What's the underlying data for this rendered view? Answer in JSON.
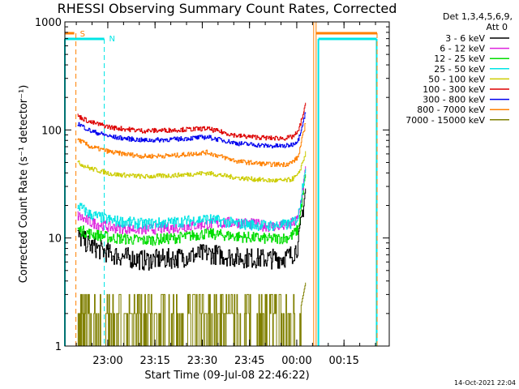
{
  "chart_data": {
    "type": "line",
    "title": "RHESSI Observing Summary Count Rates, Corrected",
    "xlabel": "Start Time (09-Jul-08 22:46:22)",
    "ylabel": "Corrected Count Rate (s⁻¹ detector⁻¹)",
    "y_scale": "log",
    "ylim": [
      1,
      1000
    ],
    "xlim_minutes": [
      0,
      103
    ],
    "y_ticks": [
      "1",
      "10",
      "100",
      "1000"
    ],
    "x_ticks": [
      {
        "label": "23:00",
        "t": 13.63
      },
      {
        "label": "23:15",
        "t": 28.63
      },
      {
        "label": "23:30",
        "t": 43.63
      },
      {
        "label": "23:45",
        "t": 58.63
      },
      {
        "label": "00:00",
        "t": 73.63
      },
      {
        "label": "00:15",
        "t": 88.63
      }
    ],
    "legend_header": [
      "Det 1,3,4,5,6,9,",
      "Att 0"
    ],
    "legend_position": "right",
    "timestamp": "14-Oct-2021 22:04",
    "night_label": "N",
    "saa_label": "S",
    "night_periods": [
      [
        0,
        12.5
      ],
      [
        80.5,
        99
      ]
    ],
    "saa_start": 3.5,
    "saa_end": 79,
    "series": [
      {
        "name": "3 - 6 keV",
        "color": "#000000",
        "t": [
          4,
          8,
          15,
          25,
          35,
          45,
          55,
          65,
          70,
          72,
          74,
          76.5
        ],
        "values": [
          10.5,
          8.5,
          7.0,
          6.2,
          6.5,
          7.2,
          6.6,
          6.4,
          6.6,
          7.0,
          8.5,
          30
        ]
      },
      {
        "name": "6 - 12 keV",
        "color": "#dd22dd",
        "t": [
          4,
          8,
          15,
          25,
          35,
          45,
          55,
          65,
          70,
          72,
          74,
          76.5
        ],
        "values": [
          16,
          14,
          12.5,
          12.0,
          12.5,
          13.5,
          14,
          12.8,
          13,
          13.5,
          15,
          45
        ]
      },
      {
        "name": "12 - 25 keV",
        "color": "#00dd00",
        "t": [
          4,
          8,
          15,
          25,
          35,
          45,
          55,
          65,
          70,
          72,
          74,
          76.5
        ],
        "values": [
          12,
          11,
          10,
          9.5,
          10,
          11,
          10.3,
          9.8,
          10,
          10.5,
          12,
          40
        ]
      },
      {
        "name": "25 - 50 keV",
        "color": "#00e5e5",
        "t": [
          4,
          8,
          15,
          25,
          35,
          45,
          55,
          65,
          70,
          72,
          74,
          76.5
        ],
        "values": [
          20,
          16.5,
          14.5,
          13.5,
          14,
          15,
          13.5,
          13.0,
          13.2,
          13.6,
          15.5,
          50
        ]
      },
      {
        "name": "50 - 100 keV",
        "color": "#cccc00",
        "t": [
          4,
          8,
          15,
          25,
          35,
          45,
          55,
          65,
          70,
          72,
          74,
          76.5
        ],
        "values": [
          50,
          44,
          39,
          37,
          38,
          40,
          36,
          34,
          34,
          35,
          38,
          62
        ]
      },
      {
        "name": "100 - 300 keV",
        "color": "#dd0000",
        "t": [
          4,
          8,
          15,
          25,
          35,
          45,
          55,
          65,
          70,
          72,
          74,
          76.5
        ],
        "values": [
          135,
          118,
          105,
          98,
          100,
          103,
          88,
          84,
          84,
          86,
          95,
          175
        ]
      },
      {
        "name": "300 - 800 keV",
        "color": "#0000ee",
        "t": [
          4,
          8,
          15,
          25,
          35,
          45,
          55,
          65,
          70,
          72,
          74,
          76.5
        ],
        "values": [
          115,
          98,
          86,
          80,
          82,
          86,
          75,
          71,
          71,
          73,
          80,
          150
        ]
      },
      {
        "name": "800 - 7000 keV",
        "color": "#ff8000",
        "t": [
          4,
          8,
          15,
          25,
          35,
          45,
          55,
          65,
          70,
          72,
          74,
          76.5
        ],
        "values": [
          82,
          70,
          62,
          57,
          58,
          62,
          51,
          48,
          48,
          50,
          56,
          120
        ]
      },
      {
        "name": "7000 - 15000 keV",
        "color": "#808000",
        "t": [
          4,
          20,
          40,
          60,
          70,
          74,
          76.5
        ],
        "values": [
          1.5,
          1.5,
          1.8,
          1.7,
          1.5,
          1.7,
          4.0
        ]
      }
    ]
  }
}
